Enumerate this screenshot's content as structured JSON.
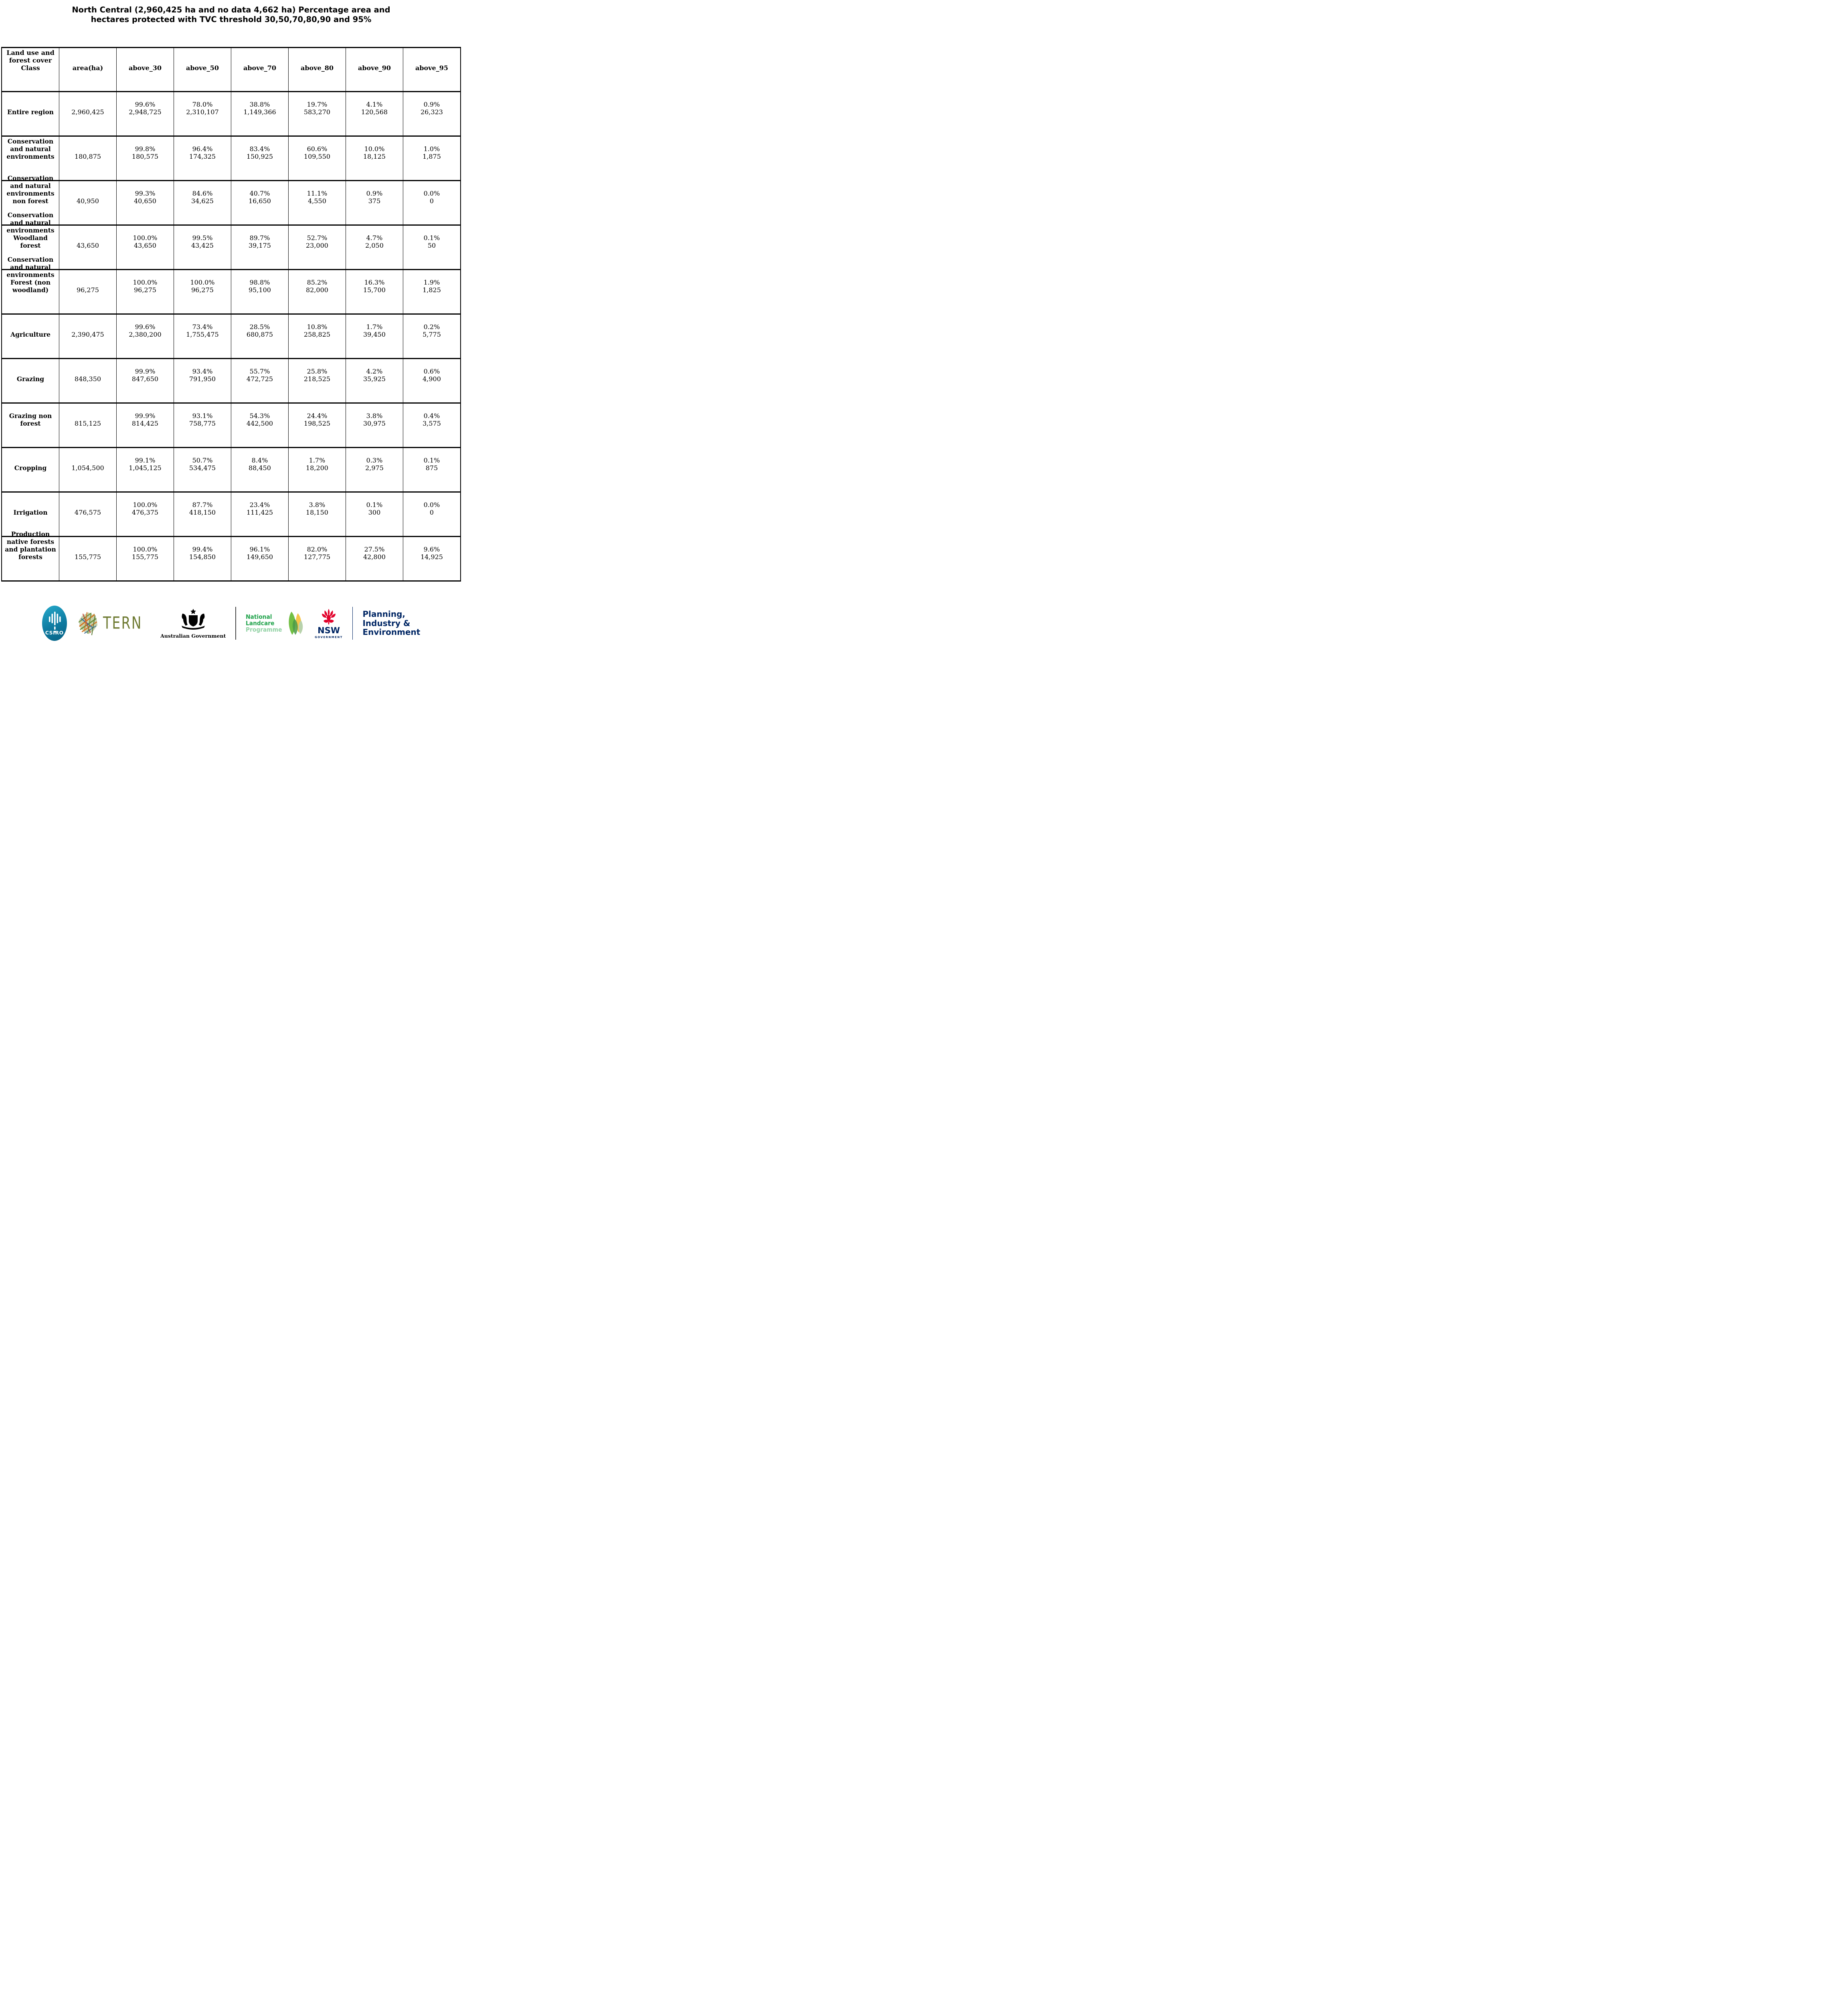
{
  "title": {
    "line1": "North Central (2,960,425 ha and no data 4,662 ha) Percentage area and",
    "line2": "hectares protected with TVC threshold 30,50,70,80,90 and 95%"
  },
  "table": {
    "columns": [
      "Land use and forest cover Class",
      "area(ha)",
      "above_30",
      "above_50",
      "above_70",
      "above_80",
      "above_90",
      "above_95"
    ],
    "rows": [
      {
        "label": "Entire region",
        "area": "2,960,425",
        "cells": [
          {
            "pct": "99.6%",
            "ha": "2,948,725"
          },
          {
            "pct": "78.0%",
            "ha": "2,310,107"
          },
          {
            "pct": "38.8%",
            "ha": "1,149,366"
          },
          {
            "pct": "19.7%",
            "ha": "583,270"
          },
          {
            "pct": "4.1%",
            "ha": "120,568"
          },
          {
            "pct": "0.9%",
            "ha": "26,323"
          }
        ]
      },
      {
        "label": "Conservation and natural environments",
        "area": "180,875",
        "cells": [
          {
            "pct": "99.8%",
            "ha": "180,575"
          },
          {
            "pct": "96.4%",
            "ha": "174,325"
          },
          {
            "pct": "83.4%",
            "ha": "150,925"
          },
          {
            "pct": "60.6%",
            "ha": "109,550"
          },
          {
            "pct": "10.0%",
            "ha": "18,125"
          },
          {
            "pct": "1.0%",
            "ha": "1,875"
          }
        ]
      },
      {
        "label": "Conservation and natural environments non forest",
        "area": "40,950",
        "cells": [
          {
            "pct": "99.3%",
            "ha": "40,650"
          },
          {
            "pct": "84.6%",
            "ha": "34,625"
          },
          {
            "pct": "40.7%",
            "ha": "16,650"
          },
          {
            "pct": "11.1%",
            "ha": "4,550"
          },
          {
            "pct": "0.9%",
            "ha": "375"
          },
          {
            "pct": "0.0%",
            "ha": "0"
          }
        ]
      },
      {
        "label": "Conservation and natural environments Woodland forest",
        "area": "43,650",
        "cells": [
          {
            "pct": "100.0%",
            "ha": "43,650"
          },
          {
            "pct": "99.5%",
            "ha": "43,425"
          },
          {
            "pct": "89.7%",
            "ha": "39,175"
          },
          {
            "pct": "52.7%",
            "ha": "23,000"
          },
          {
            "pct": "4.7%",
            "ha": "2,050"
          },
          {
            "pct": "0.1%",
            "ha": "50"
          }
        ]
      },
      {
        "label": "Conservation and natural environments Forest (non woodland)",
        "area": "96,275",
        "cells": [
          {
            "pct": "100.0%",
            "ha": "96,275"
          },
          {
            "pct": "100.0%",
            "ha": "96,275"
          },
          {
            "pct": "98.8%",
            "ha": "95,100"
          },
          {
            "pct": "85.2%",
            "ha": "82,000"
          },
          {
            "pct": "16.3%",
            "ha": "15,700"
          },
          {
            "pct": "1.9%",
            "ha": "1,825"
          }
        ]
      },
      {
        "label": "Agriculture",
        "area": "2,390,475",
        "cells": [
          {
            "pct": "99.6%",
            "ha": "2,380,200"
          },
          {
            "pct": "73.4%",
            "ha": "1,755,475"
          },
          {
            "pct": "28.5%",
            "ha": "680,875"
          },
          {
            "pct": "10.8%",
            "ha": "258,825"
          },
          {
            "pct": "1.7%",
            "ha": "39,450"
          },
          {
            "pct": "0.2%",
            "ha": "5,775"
          }
        ]
      },
      {
        "label": "Grazing",
        "area": "848,350",
        "cells": [
          {
            "pct": "99.9%",
            "ha": "847,650"
          },
          {
            "pct": "93.4%",
            "ha": "791,950"
          },
          {
            "pct": "55.7%",
            "ha": "472,725"
          },
          {
            "pct": "25.8%",
            "ha": "218,525"
          },
          {
            "pct": "4.2%",
            "ha": "35,925"
          },
          {
            "pct": "0.6%",
            "ha": "4,900"
          }
        ]
      },
      {
        "label": "Grazing non forest",
        "area": "815,125",
        "cells": [
          {
            "pct": "99.9%",
            "ha": "814,425"
          },
          {
            "pct": "93.1%",
            "ha": "758,775"
          },
          {
            "pct": "54.3%",
            "ha": "442,500"
          },
          {
            "pct": "24.4%",
            "ha": "198,525"
          },
          {
            "pct": "3.8%",
            "ha": "30,975"
          },
          {
            "pct": "0.4%",
            "ha": "3,575"
          }
        ]
      },
      {
        "label": "Cropping",
        "area": "1,054,500",
        "cells": [
          {
            "pct": "99.1%",
            "ha": "1,045,125"
          },
          {
            "pct": "50.7%",
            "ha": "534,475"
          },
          {
            "pct": "8.4%",
            "ha": "88,450"
          },
          {
            "pct": "1.7%",
            "ha": "18,200"
          },
          {
            "pct": "0.3%",
            "ha": "2,975"
          },
          {
            "pct": "0.1%",
            "ha": "875"
          }
        ]
      },
      {
        "label": "Irrigation",
        "area": "476,575",
        "cells": [
          {
            "pct": "100.0%",
            "ha": "476,375"
          },
          {
            "pct": "87.7%",
            "ha": "418,150"
          },
          {
            "pct": "23.4%",
            "ha": "111,425"
          },
          {
            "pct": "3.8%",
            "ha": "18,150"
          },
          {
            "pct": "0.1%",
            "ha": "300"
          },
          {
            "pct": "0.0%",
            "ha": "0"
          }
        ]
      },
      {
        "label": "Production native forests and plantation forests",
        "area": "155,775",
        "cells": [
          {
            "pct": "100.0%",
            "ha": "155,775"
          },
          {
            "pct": "99.4%",
            "ha": "154,850"
          },
          {
            "pct": "96.1%",
            "ha": "149,650"
          },
          {
            "pct": "82.0%",
            "ha": "127,775"
          },
          {
            "pct": "27.5%",
            "ha": "42,800"
          },
          {
            "pct": "9.6%",
            "ha": "14,925"
          }
        ]
      }
    ]
  },
  "footer": {
    "csiro": {
      "label": "CSIRO"
    },
    "tern": {
      "label": "TERN"
    },
    "aus_gov": {
      "label": "Australian Government"
    },
    "landcare": {
      "lines": [
        "National",
        "Landcare",
        "Programme"
      ]
    },
    "nsw": {
      "label": "NSW",
      "sub": "GOVERNMENT"
    },
    "planning": {
      "lines": [
        "Planning,",
        "Industry &",
        "Environment"
      ]
    }
  },
  "colors": {
    "csiro_teal": "#1796bc",
    "tern_olive": "#6f7b33",
    "landcare_green": "#1fa24a",
    "landcare_light_green": "#90d1a3",
    "leaf_green": "#72bf44",
    "leaf_yellow": "#f6c54b",
    "leaf_sage": "#b8d2ac",
    "nsw_red": "#e2032c",
    "nsw_navy": "#002664",
    "border_black": "#000000"
  }
}
